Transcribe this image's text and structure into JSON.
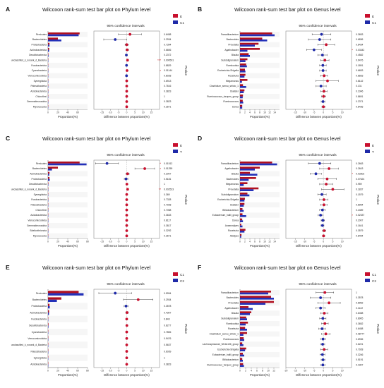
{
  "figure": {
    "palette": {
      "red": "#c8102e",
      "blue": "#1f2aa8",
      "bar_red": "#b01020",
      "bar_blue": "#2330b8"
    }
  },
  "chart_data": [
    {
      "letter": "A",
      "type": "bar",
      "title": "Wilcoxon rank-sum test bar plot on Phylum level",
      "ci_title": "95% confidence intervals",
      "xlabel": "Proportions(%)",
      "ci_xlabel": "Difference between proportions(%)",
      "pvalue_label": "Pvalue",
      "legend": [
        "E",
        "C1"
      ],
      "categories": [
        "Firmicutes",
        "Bacteroidetes",
        "Proteobacteria",
        "Actinobacteriota",
        "Desulfobacterota",
        "unclassified_k_norank_d_Bacteria",
        "Fusobacteriota",
        "Cyanobacteria",
        "Verrucomicrobiota",
        "Synergistota",
        "Patescibacteria",
        "Acidobacteriota",
        "Chloroflexi",
        "Gemmatimonadota",
        "Myxococcota"
      ],
      "xlim": [
        0,
        80
      ],
      "xticks": [
        0,
        20,
        40,
        60
      ],
      "series": [
        {
          "name": "E",
          "values": [
            64,
            20,
            3,
            2.5,
            0.8,
            0.6,
            0.4,
            0.3,
            0.2,
            0.2,
            0.1,
            0.1,
            0.1,
            0.05,
            0.05
          ]
        },
        {
          "name": "C1",
          "values": [
            62,
            27,
            3,
            2.2,
            1,
            0.1,
            0.5,
            0.05,
            0.3,
            0.2,
            0.1,
            0.1,
            0.1,
            0.05,
            0.05
          ]
        }
      ],
      "ci_xlim": [
        -20,
        20
      ],
      "ci_xticks": [
        -15,
        -10,
        -5,
        0,
        5,
        10,
        15
      ],
      "diff": [
        2,
        -7,
        0,
        0.3,
        -0.2,
        0.5,
        -0.1,
        0.2,
        -0.1,
        0,
        0,
        0,
        0,
        0,
        0
      ],
      "ci_low": [
        -5,
        -14,
        -1,
        -0.5,
        -0.8,
        0.2,
        -0.4,
        0.05,
        -0.4,
        -0.2,
        -0.1,
        -0.1,
        -0.1,
        -0.1,
        -0.1
      ],
      "ci_high": [
        9,
        0,
        1,
        1.1,
        0.4,
        0.8,
        0.2,
        0.35,
        0.2,
        0.2,
        0.1,
        0.1,
        0.1,
        0.1,
        0.1
      ],
      "pvalues": [
        "0.6458",
        "0.2934",
        "0.7394",
        "0.6606",
        "0.2372",
        "0.000501",
        "0.8829",
        "0.01144",
        "0.8028",
        "0.6913",
        "0.7616",
        "0.3823",
        "1",
        "0.3823",
        "0.2671"
      ],
      "stars": [
        "",
        "",
        "",
        "",
        "",
        "***",
        "",
        "*",
        "",
        "",
        "",
        "",
        "",
        "",
        ""
      ]
    },
    {
      "letter": "B",
      "type": "bar",
      "title": "Wilcoxon rank-sum test bar plot on Genus level",
      "ci_title": "95% confidence intervals",
      "xlabel": "Proportions(%)",
      "ci_xlabel": "Difference between proportions(%)",
      "pvalue_label": "Pvalue",
      "legend": [
        "E",
        "C1"
      ],
      "categories": [
        "Faecalibacterium",
        "Bacteroides",
        "Prevotella",
        "Agathobacter",
        "Blautia",
        "Subdoligranulum",
        "Romboutsia",
        "Escherichia-Shigella",
        "Roseburia",
        "Megamonas",
        "Clostridium_sensu_stricto_1",
        "Dialister",
        "Ruminococcus_torques_group",
        "Ruminococcus",
        "Dorea"
      ],
      "xlim": [
        0,
        16
      ],
      "xticks": [
        0,
        2,
        4,
        6,
        8,
        10,
        12,
        14
      ],
      "series": [
        {
          "name": "E",
          "values": [
            13,
            9,
            7.5,
            8,
            3.5,
            3,
            2.5,
            2,
            2.2,
            3,
            1.2,
            1.8,
            1.2,
            1.1,
            0.9
          ]
        },
        {
          "name": "C1",
          "values": [
            14,
            11,
            6,
            3,
            4,
            2.2,
            2.8,
            2.2,
            1.8,
            0.8,
            2.5,
            1.5,
            1.1,
            1.3,
            0.9
          ]
        }
      ],
      "ci_xlim": [
        -20,
        15
      ],
      "ci_xticks": [
        -15,
        -10,
        -5,
        0,
        5,
        10
      ],
      "diff": [
        -1,
        -2,
        1.5,
        -5,
        -0.5,
        0.8,
        -0.3,
        -0.2,
        0.4,
        2.2,
        -1.3,
        0.3,
        0.1,
        -0.2,
        0
      ],
      "ci_low": [
        -6,
        -8,
        -3,
        -9,
        -3,
        -1.5,
        -2,
        -2,
        -1.5,
        -4,
        -4,
        -1.5,
        -1,
        -1.2,
        -0.8
      ],
      "ci_high": [
        4,
        4,
        6,
        -1,
        2,
        3,
        1.5,
        1.5,
        2.2,
        8,
        1.5,
        2,
        1.2,
        0.8,
        0.8
      ],
      "pvalues": [
        "0.3653",
        "0.6836",
        "0.8434",
        "0.03342",
        "0.4582",
        "0.9476",
        "0.1891",
        "0.6653",
        "0.8653",
        "0.8142",
        "0.131",
        "0.2346",
        "0.8691",
        "0.2371",
        "0.8436"
      ],
      "stars": [
        "",
        "",
        "",
        "*",
        "",
        "",
        "",
        "",
        "",
        "",
        "",
        "",
        "",
        "",
        ""
      ]
    },
    {
      "letter": "C",
      "type": "bar",
      "title": "Wilcoxon rank-sum test bar plot on Phylum level",
      "ci_title": "95% confidence intervals",
      "xlabel": "Proportions(%)",
      "ci_xlabel": "Difference between proportions(%)",
      "pvalue_label": "Pvalue",
      "legend": [
        "E",
        "T"
      ],
      "categories": [
        "Firmicutes",
        "Bacteroidetes",
        "Actinobacteriota",
        "Proteobacteria",
        "Desulfobacterota",
        "unclassified_k_norank_d_Bacteria",
        "Synergistota",
        "Fusobacteriota",
        "Patescibacteria",
        "Chloroflexi",
        "Acidobacteriota",
        "Verrucomicrobiota",
        "Gemmatimonadota",
        "Bdellovibrionota",
        "Myxococcota"
      ],
      "xlim": [
        0,
        80
      ],
      "xticks": [
        0,
        20,
        40,
        60,
        80
      ],
      "series": [
        {
          "name": "E",
          "values": [
            64,
            20,
            3,
            3,
            0.8,
            0.6,
            0.2,
            0.4,
            0.1,
            0.1,
            0.1,
            0.2,
            0.05,
            0.05,
            0.05
          ]
        },
        {
          "name": "T",
          "values": [
            78,
            8,
            2.5,
            3.5,
            0.7,
            0.05,
            0.2,
            0.4,
            0.1,
            0.1,
            0.1,
            0.2,
            0.05,
            0.05,
            0.05
          ]
        }
      ],
      "ci_xlim": [
        -20,
        20
      ],
      "ci_xticks": [
        -15,
        -10,
        -5,
        0,
        5,
        10,
        15
      ],
      "diff": [
        -12,
        11,
        0.5,
        -0.4,
        0.1,
        0.55,
        0,
        0,
        0,
        0,
        0,
        0,
        0,
        0,
        0
      ],
      "ci_low": [
        -19,
        5,
        -0.5,
        -1.5,
        -0.4,
        0.3,
        -0.2,
        -0.3,
        -0.1,
        -0.1,
        -0.1,
        -0.2,
        -0.1,
        -0.1,
        -0.1
      ],
      "ci_high": [
        -5,
        17,
        1.5,
        0.7,
        0.6,
        0.8,
        0.2,
        0.3,
        0.1,
        0.1,
        0.1,
        0.2,
        0.1,
        0.1,
        0.1
      ],
      "pvalues": [
        "0.01512",
        "0.01259",
        "0.2007",
        "0.5181",
        "1",
        "0.002523",
        "0.369",
        "0.7328",
        "0.7928",
        "0.7058",
        "0.3633",
        "0.8117",
        "0.3817",
        "0.3292",
        "0.2671"
      ],
      "stars": [
        "*",
        "*",
        "",
        "",
        "",
        "**",
        "",
        "",
        "",
        "",
        "",
        "",
        "",
        "",
        ""
      ]
    },
    {
      "letter": "D",
      "type": "bar",
      "title": "Wilcoxon rank-sum test bar plot on Genus level",
      "ci_title": "95% confidence intervals",
      "xlabel": "Proportions(%)",
      "ci_xlabel": "Difference between proportions(%)",
      "pvalue_label": "Pvalue",
      "legend": [
        "E",
        "T"
      ],
      "categories": [
        "Faecalibacterium",
        "Agathobacter",
        "Blautia",
        "Bacteroides",
        "Megamonas",
        "Prevotella",
        "Subdoligranulum",
        "Escherichia-Shigella",
        "Dialister",
        "Bifidobacterium",
        "Eubacterium_hallii_group",
        "Dorea",
        "Anaerostipes",
        "Roseburia",
        "Alistipes"
      ],
      "xlim": [
        0,
        16
      ],
      "xticks": [
        0,
        2,
        4,
        6,
        8,
        10,
        12,
        14
      ],
      "series": [
        {
          "name": "E",
          "values": [
            13,
            8,
            4,
            6.5,
            3,
            7.5,
            3,
            2,
            1.8,
            1,
            1,
            0.9,
            0.5,
            2.2,
            0.6
          ]
        },
        {
          "name": "T",
          "values": [
            15,
            6,
            7,
            3.5,
            1.5,
            5.5,
            3.8,
            1.8,
            1.5,
            1.5,
            2.5,
            1.2,
            1,
            1.8,
            0.5
          ]
        }
      ],
      "ci_xlim": [
        -20,
        15
      ],
      "ci_xticks": [
        -15,
        -10,
        -5,
        0,
        5,
        10
      ],
      "diff": [
        -2,
        3,
        -4,
        2,
        1.5,
        5,
        -0.8,
        0.3,
        0.3,
        -0.5,
        -1.5,
        -0.3,
        -0.5,
        0.4,
        0.1
      ],
      "ci_low": [
        -8,
        -2,
        -7,
        -3,
        -2,
        -1,
        -3,
        -2,
        -1.5,
        -2,
        -2.8,
        -1.2,
        -1.3,
        -0.5,
        -0.5
      ],
      "ci_high": [
        4,
        8,
        -1,
        7,
        5,
        11,
        1.5,
        2.5,
        2,
        1,
        -0.3,
        0.6,
        0.3,
        1.3,
        0.7
      ],
      "pvalues": [
        "0.2663",
        "0.2643",
        "0.03302",
        "0.07624",
        "0.959",
        "0.1837",
        "0.1579",
        "1",
        "0.8954",
        "0.4489",
        "0.02337",
        "0.2007",
        "0.1641",
        "0.3579",
        "0.8494"
      ],
      "stars": [
        "",
        "",
        "*",
        "",
        "",
        "",
        "",
        "",
        "",
        "",
        "*",
        "",
        "",
        "",
        ""
      ]
    },
    {
      "letter": "E",
      "type": "bar",
      "title": "Wilcoxon rank-sum test bar plot on Phylum level",
      "ci_title": "95% confidence intervals",
      "xlabel": "Proportions(%)",
      "ci_xlabel": "Difference between proportions(%)",
      "pvalue_label": "Pvalue",
      "legend": [
        "C1",
        "C2"
      ],
      "categories": [
        "Firmicutes",
        "Bacteroidetes",
        "Proteobacteria",
        "Actinobacteriota",
        "Fusobacteriota",
        "Desulfobacterota",
        "Cyanobacteria",
        "Verrucomicrobiota",
        "unclassified_k_norank_d_Bacteria",
        "Patescibacteria",
        "Synergistota",
        "Acidobacteriota"
      ],
      "xlim": [
        0,
        80
      ],
      "xticks": [
        0,
        20,
        40,
        60,
        80
      ],
      "series": [
        {
          "name": "C1",
          "values": [
            62,
            27,
            3,
            2.2,
            0.5,
            1,
            0.05,
            0.3,
            0.1,
            0.1,
            0.2,
            0.1
          ]
        },
        {
          "name": "C2",
          "values": [
            72,
            18,
            3.5,
            2,
            0.5,
            0.9,
            0.1,
            0.3,
            0.1,
            0.1,
            0.2,
            0.1
          ]
        }
      ],
      "ci_xlim": [
        -20,
        20
      ],
      "ci_xticks": [
        -15,
        -10,
        -5,
        0,
        5,
        10,
        15
      ],
      "diff": [
        -7,
        7,
        -0.4,
        0.2,
        0,
        0.1,
        0,
        0,
        0,
        0,
        0,
        0
      ],
      "ci_low": [
        -17,
        -2,
        -1.6,
        -0.6,
        -0.3,
        -0.4,
        -0.1,
        -0.2,
        -0.1,
        -0.1,
        -0.2,
        -0.1
      ],
      "ci_high": [
        3,
        16,
        0.8,
        1,
        0.3,
        0.6,
        0.1,
        0.2,
        0.1,
        0.1,
        0.2,
        0.1
      ],
      "pvalues": [
        "0.5994",
        "0.2934",
        "0.3578",
        "0.4307",
        "0.843",
        "0.8277",
        "0.7806",
        "0.9476",
        "0.5637",
        "0.6039",
        "1",
        "0.3823"
      ],
      "stars": [
        "",
        "",
        "",
        "",
        "",
        "",
        "",
        "",
        "",
        "",
        "",
        ""
      ]
    },
    {
      "letter": "F",
      "type": "bar",
      "title": "Wilcoxon rank-sum test bar plot on Genus level",
      "ci_title": "95% confidence intervals",
      "xlabel": "Proportions(%)",
      "ci_xlabel": "Difference between proportions(%)",
      "pvalue_label": "Pvalue",
      "legend": [
        "C1",
        "C2"
      ],
      "categories": [
        "Faecalibacterium",
        "Bacteroides",
        "Prevotella",
        "Agathobacter",
        "Blautia",
        "Subdoligranulum",
        "Romboutsia",
        "Roseburia",
        "Clostridium_sensu_stricto_1",
        "Ruminococcus",
        "Lachnospiraceae_NK4A136_group",
        "Escherichia-Shigella",
        "Eubacterium_hallii_group",
        "Bifidobacterium",
        "Ruminococcus_torques_group"
      ],
      "xlim": [
        0,
        14
      ],
      "xticks": [
        0,
        2,
        4,
        6,
        8,
        10,
        12
      ],
      "series": [
        {
          "name": "C1",
          "values": [
            11,
            11,
            12,
            3,
            4,
            2.2,
            2.8,
            1.8,
            2.5,
            1.3,
            0.8,
            2.2,
            1,
            0.8,
            1.1
          ]
        },
        {
          "name": "C2",
          "values": [
            10,
            12,
            9,
            4.5,
            3.5,
            2.5,
            2,
            2.5,
            1.2,
            1.5,
            1.2,
            1.8,
            1.5,
            1,
            1.4
          ]
        }
      ],
      "ci_xlim": [
        -20,
        15
      ],
      "ci_xticks": [
        -20,
        -15,
        -10,
        -5,
        0,
        5,
        10
      ],
      "diff": [
        0.8,
        -1.5,
        3,
        -1.5,
        0.5,
        -0.3,
        0.8,
        -0.7,
        1.3,
        -0.2,
        -0.4,
        0.4,
        -0.5,
        -0.2,
        -0.3
      ],
      "ci_low": [
        -4,
        -7,
        -3,
        -4,
        -1.5,
        -2,
        -1,
        -2.5,
        -1,
        -1.5,
        -1.5,
        -1.5,
        -1.8,
        -1.2,
        -1.5
      ],
      "ci_high": [
        5.5,
        4,
        9,
        1,
        2.5,
        1.4,
        2.6,
        1.1,
        3.6,
        1.1,
        0.7,
        2.3,
        0.8,
        0.8,
        0.9
      ],
      "pvalues": [
        "1",
        "0.3578",
        "0.8952",
        "0.1122",
        "0.6458",
        "0.8905",
        "0.3652",
        "0.6458",
        "0.08777",
        "0.6936",
        "0.6221",
        "0.7928",
        "0.3246",
        "0.5191",
        "0.4307"
      ],
      "stars": [
        "",
        "",
        "",
        "",
        "",
        "",
        "",
        "",
        "",
        "",
        "",
        "",
        "",
        "",
        ""
      ]
    }
  ]
}
